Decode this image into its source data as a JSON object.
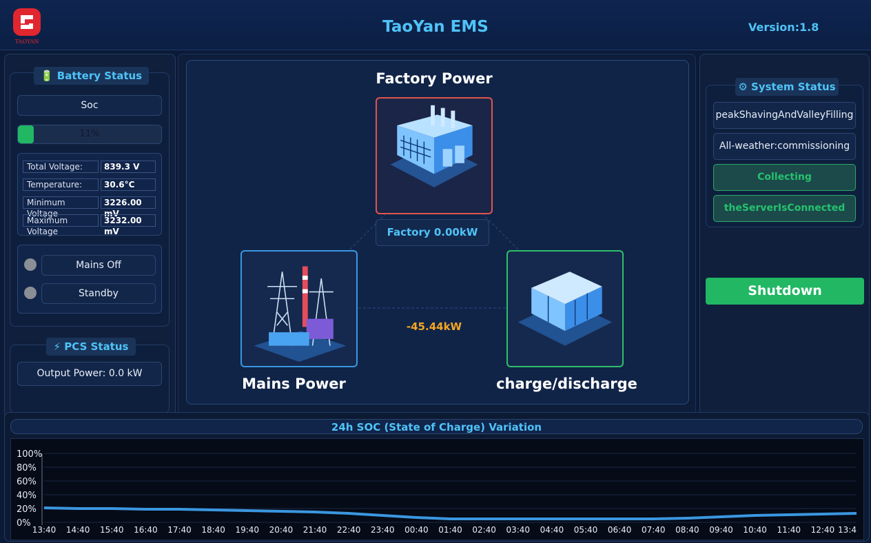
{
  "header": {
    "title": "TaoYan EMS",
    "version": "Version:1.8",
    "logo_text": "TAOYAN"
  },
  "battery": {
    "title": "🔋 Battery Status",
    "soc_label": "Soc",
    "soc_text": "11%",
    "soc_value": 11,
    "rows": [
      {
        "label": "Total Voltage:",
        "value": "839.3 V"
      },
      {
        "label": "Temperature:",
        "value": "30.6°C"
      },
      {
        "label": "Minimum Voltage",
        "value": "3226.00 mV"
      },
      {
        "label": "Maximum Voltage",
        "value": "3232.00 mV"
      }
    ],
    "indicators": [
      {
        "label": "Mains Off"
      },
      {
        "label": "Standby"
      }
    ]
  },
  "pcs": {
    "title": "⚡ PCS Status",
    "output": "Output Power: 0.0 kW"
  },
  "flow": {
    "factory_title": "Factory Power",
    "factory_reading": "Factory 0.00kW",
    "mains_title": "Mains Power",
    "storage_title": "charge/discharge",
    "grid_power": "-45.44kW"
  },
  "system": {
    "title": "⚙ System Status",
    "items": [
      "peakShavingAndValleyFilling",
      "All-weather:commissioning",
      "Collecting",
      "theServerIsConnected"
    ],
    "shutdown_label": "Shutdown"
  },
  "colors": {
    "accent": "#4fc3f7",
    "ok": "#21b763",
    "warn": "#f5a623",
    "factory_border": "#e0554d",
    "mains_border": "#3b97e0",
    "storage_border": "#2fc06a"
  },
  "chart_data": {
    "type": "line",
    "title": "24h SOC (State of Charge) Variation",
    "ylim": [
      0,
      100
    ],
    "yticks": [
      "100%",
      "80%",
      "60%",
      "40%",
      "20%",
      "0%"
    ],
    "x": [
      "13:40",
      "14:40",
      "15:40",
      "16:40",
      "17:40",
      "18:40",
      "19:40",
      "20:40",
      "21:40",
      "22:40",
      "23:40",
      "00:40",
      "01:40",
      "02:40",
      "03:40",
      "04:40",
      "05:40",
      "06:40",
      "07:40",
      "08:40",
      "09:40",
      "10:40",
      "11:40",
      "12:40",
      "13:4"
    ],
    "series": [
      {
        "values": [
          21,
          20,
          20,
          19,
          19,
          18,
          17,
          16,
          15,
          13,
          10,
          7,
          5,
          5,
          5,
          5,
          5,
          5,
          5,
          6,
          8,
          10,
          11,
          12,
          13
        ]
      }
    ],
    "grid": true
  }
}
